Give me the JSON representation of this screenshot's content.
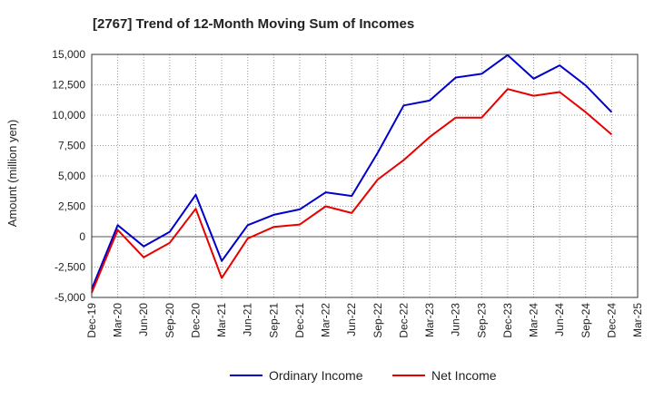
{
  "chart_data": {
    "type": "line",
    "title": "[2767]  Trend of 12-Month Moving Sum of Incomes",
    "xlabel": "",
    "ylabel": "Amount (million yen)",
    "ylim": [
      -5000,
      15000
    ],
    "yticks": [
      15000,
      12500,
      10000,
      7500,
      5000,
      2500,
      0,
      -2500,
      -5000
    ],
    "ytick_labels": [
      "15,000",
      "12,500",
      "10,000",
      "7,500",
      "5,000",
      "2,500",
      "0",
      "-2,500",
      "-5,000"
    ],
    "categories": [
      "Dec-19",
      "Mar-20",
      "Jun-20",
      "Sep-20",
      "Dec-20",
      "Mar-21",
      "Jun-21",
      "Sep-21",
      "Dec-21",
      "Mar-22",
      "Jun-22",
      "Sep-22",
      "Dec-22",
      "Mar-23",
      "Jun-23",
      "Sep-23",
      "Dec-23",
      "Mar-24",
      "Jun-24",
      "Sep-24",
      "Dec-24",
      "Mar-25"
    ],
    "grid": true,
    "legend_position": "bottom-center",
    "series": [
      {
        "name": "Ordinary Income",
        "color": "#0000cc",
        "values": [
          -4300,
          950,
          -800,
          400,
          3450,
          -2000,
          950,
          1800,
          2250,
          3650,
          3350,
          6900,
          10800,
          11200,
          13100,
          13400,
          14950,
          13000,
          14100,
          12450,
          10250,
          null
        ]
      },
      {
        "name": "Net Income",
        "color": "#e60000",
        "values": [
          -4600,
          550,
          -1700,
          -500,
          2300,
          -3400,
          -150,
          800,
          1000,
          2500,
          1950,
          4700,
          6300,
          8200,
          9800,
          9800,
          12150,
          11600,
          11900,
          10250,
          8400,
          null
        ]
      }
    ]
  }
}
